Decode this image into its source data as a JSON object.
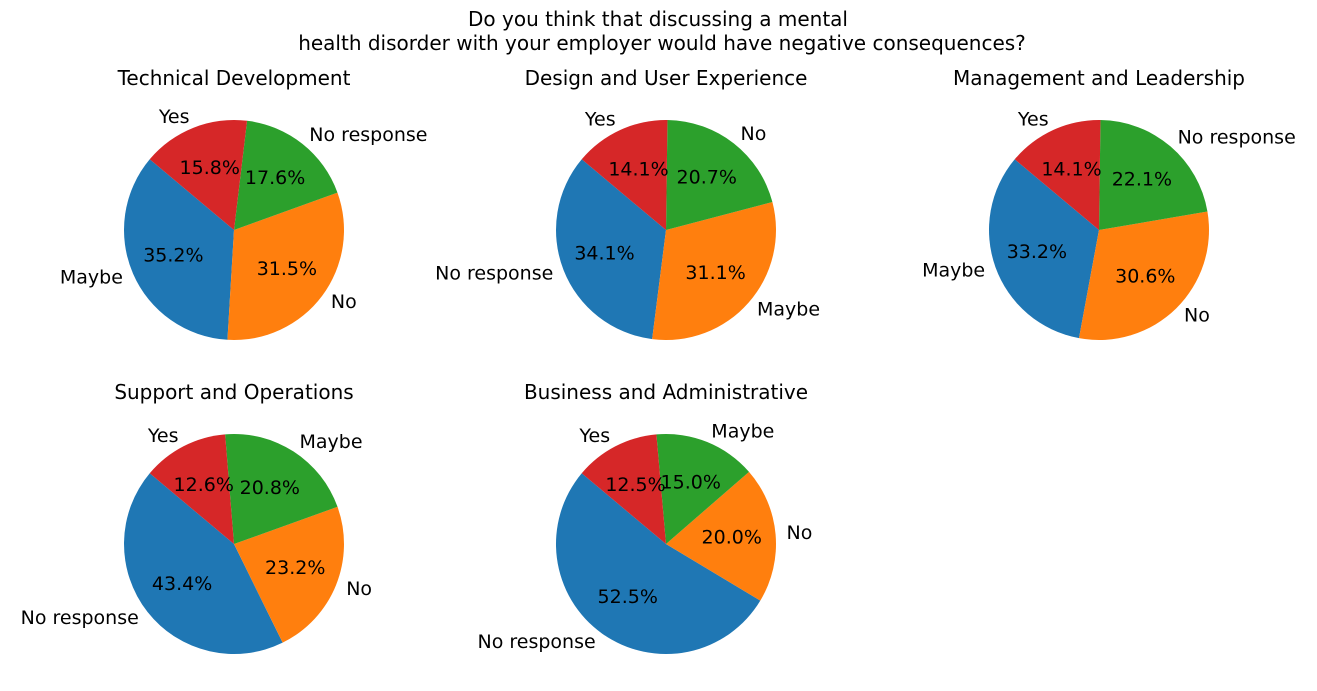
{
  "figure": {
    "title_lines": [
      "Do you think that discussing a mental",
      "health disorder with your employer would have negative consequences?"
    ]
  },
  "colors": {
    "blue": "#1f77b4",
    "orange": "#ff7f0e",
    "green": "#2ca02c",
    "red": "#d62728"
  },
  "chart_data": [
    {
      "type": "pie",
      "title": "Technical Development",
      "slices": [
        {
          "label": "Maybe",
          "value": 35.2,
          "pct_text": "35.2%",
          "color": "#1f77b4"
        },
        {
          "label": "No",
          "value": 31.5,
          "pct_text": "31.5%",
          "color": "#ff7f0e"
        },
        {
          "label": "No response",
          "value": 17.6,
          "pct_text": "17.6%",
          "color": "#2ca02c"
        },
        {
          "label": "Yes",
          "value": 15.8,
          "pct_text": "15.8%",
          "color": "#d62728"
        }
      ]
    },
    {
      "type": "pie",
      "title": "Design and User Experience",
      "slices": [
        {
          "label": "No response",
          "value": 34.1,
          "pct_text": "34.1%",
          "color": "#1f77b4"
        },
        {
          "label": "Maybe",
          "value": 31.1,
          "pct_text": "31.1%",
          "color": "#ff7f0e"
        },
        {
          "label": "No",
          "value": 20.7,
          "pct_text": "20.7%",
          "color": "#2ca02c"
        },
        {
          "label": "Yes",
          "value": 14.1,
          "pct_text": "14.1%",
          "color": "#d62728"
        }
      ]
    },
    {
      "type": "pie",
      "title": "Management and Leadership",
      "slices": [
        {
          "label": "Maybe",
          "value": 33.2,
          "pct_text": "33.2%",
          "color": "#1f77b4"
        },
        {
          "label": "No",
          "value": 30.6,
          "pct_text": "30.6%",
          "color": "#ff7f0e"
        },
        {
          "label": "No response",
          "value": 22.1,
          "pct_text": "22.1%",
          "color": "#2ca02c"
        },
        {
          "label": "Yes",
          "value": 14.1,
          "pct_text": "14.1%",
          "color": "#d62728"
        }
      ]
    },
    {
      "type": "pie",
      "title": "Support and Operations",
      "slices": [
        {
          "label": "No response",
          "value": 43.4,
          "pct_text": "43.4%",
          "color": "#1f77b4"
        },
        {
          "label": "No",
          "value": 23.2,
          "pct_text": "23.2%",
          "color": "#ff7f0e"
        },
        {
          "label": "Maybe",
          "value": 20.8,
          "pct_text": "20.8%",
          "color": "#2ca02c"
        },
        {
          "label": "Yes",
          "value": 12.6,
          "pct_text": "12.6%",
          "color": "#d62728"
        }
      ]
    },
    {
      "type": "pie",
      "title": "Business and Administrative",
      "slices": [
        {
          "label": "No response",
          "value": 52.5,
          "pct_text": "52.5%",
          "color": "#1f77b4"
        },
        {
          "label": "No",
          "value": 20.0,
          "pct_text": "20.0%",
          "color": "#ff7f0e"
        },
        {
          "label": "Maybe",
          "value": 15.0,
          "pct_text": "15.0%",
          "color": "#2ca02c"
        },
        {
          "label": "Yes",
          "value": 12.5,
          "pct_text": "12.5%",
          "color": "#d62728"
        }
      ]
    }
  ]
}
